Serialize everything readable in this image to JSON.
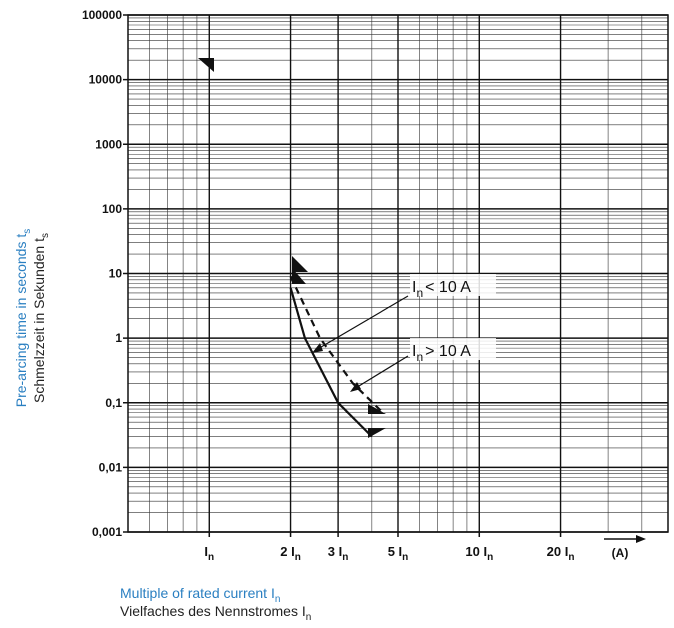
{
  "chart_data": {
    "type": "line",
    "y_log": true,
    "x_log": true,
    "grid": true,
    "ylim": [
      0.001,
      100000
    ],
    "yticks": [
      {
        "value": 0.001,
        "label": "0,001"
      },
      {
        "value": 0.01,
        "label": "0,01"
      },
      {
        "value": 0.1,
        "label": "0,1"
      },
      1,
      10,
      100,
      1000,
      10000,
      100000
    ],
    "xlim": [
      0.5,
      50
    ],
    "xticks": [
      {
        "value": 1,
        "label": "I",
        "sub": "n"
      },
      {
        "value": 2,
        "label": "2 I",
        "sub": "n"
      },
      {
        "value": 3,
        "label": "3 I",
        "sub": "n"
      },
      {
        "value": 5,
        "label": "5 I",
        "sub": "n"
      },
      {
        "value": 10,
        "label": "10 I",
        "sub": "n"
      },
      {
        "value": 20,
        "label": "20 I",
        "sub": "n"
      }
    ],
    "x_unit": "(A)",
    "x_title": {
      "text": "Multiple of rated current I",
      "sub": "n"
    },
    "x_title2": {
      "text": "Vielfaches des Nennstromes I",
      "sub": "n"
    },
    "y_title": {
      "text": "Pre-arcing time in seconds t",
      "sub": "s"
    },
    "y_title2": {
      "text": "Schmelzzeit in Sekunden t",
      "sub": "s"
    },
    "annotations": [
      {
        "text": "I",
        "sub": "n",
        "after": "< 10 A"
      },
      {
        "text": "I",
        "sub": "n",
        "after": "> 10 A"
      }
    ],
    "series": [
      {
        "color": "#111111",
        "dash": false,
        "x": [
          2,
          2.26,
          3,
          4
        ],
        "values": [
          6,
          1,
          0.1,
          0.03
        ]
      },
      {
        "color": "#111111",
        "dash": true,
        "x": [
          2,
          2.57,
          3.4,
          4.4
        ],
        "values": [
          9,
          1,
          0.2,
          0.07
        ]
      }
    ]
  }
}
